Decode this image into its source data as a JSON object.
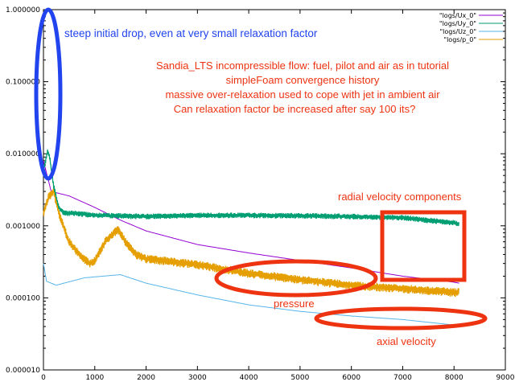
{
  "chart_data": {
    "type": "line",
    "xlabel": "",
    "ylabel": "",
    "xlim": [
      0,
      9000
    ],
    "ylim": [
      1e-05,
      1.0
    ],
    "yscale": "log",
    "grid": false,
    "legend_position": "top-right",
    "x_ticks": [
      0,
      1000,
      2000,
      3000,
      4000,
      5000,
      6000,
      7000,
      8000,
      9000
    ],
    "x_tick_labels": [
      "0",
      "1000",
      "2000",
      "3000",
      "4000",
      "5000",
      "6000",
      "7000",
      "8000",
      "9000"
    ],
    "y_ticks": [
      1e-05,
      0.0001,
      0.001,
      0.01,
      0.1,
      1.0
    ],
    "y_tick_labels": [
      "0.000010",
      "0.000100",
      "0.001000",
      "0.010000",
      "0.100000",
      "1.000000"
    ],
    "series": [
      {
        "name": "\"logs/Ux_0\"",
        "color": "#9400d3",
        "noise": 0,
        "points": [
          [
            0,
            0.008
          ],
          [
            150,
            0.003
          ],
          [
            500,
            0.0026
          ],
          [
            1000,
            0.0018
          ],
          [
            1500,
            0.0012
          ],
          [
            2000,
            0.00085
          ],
          [
            3000,
            0.00055
          ],
          [
            4000,
            0.00042
          ],
          [
            5000,
            0.00033
          ],
          [
            6000,
            0.00026
          ],
          [
            7000,
            0.0002
          ],
          [
            8000,
            0.000165
          ],
          [
            8100,
            0.00016
          ]
        ]
      },
      {
        "name": "\"logs/Uy_0\"",
        "color": "#009e73",
        "noise": 0.09,
        "points": [
          [
            0,
            0.006
          ],
          [
            40,
            0.008
          ],
          [
            80,
            0.011
          ],
          [
            120,
            0.009
          ],
          [
            200,
            0.0035
          ],
          [
            300,
            0.0018
          ],
          [
            400,
            0.0015
          ],
          [
            600,
            0.0015
          ],
          [
            1000,
            0.0014
          ],
          [
            2000,
            0.00135
          ],
          [
            3000,
            0.0014
          ],
          [
            4000,
            0.0014
          ],
          [
            5000,
            0.00138
          ],
          [
            6000,
            0.00135
          ],
          [
            7000,
            0.0013
          ],
          [
            8000,
            0.0011
          ],
          [
            8100,
            0.00105
          ]
        ]
      },
      {
        "name": "\"logs/Uz_0\"",
        "color": "#56b4e9",
        "noise": 0,
        "points": [
          [
            0,
            0.0003
          ],
          [
            60,
            0.00017
          ],
          [
            150,
            0.00016
          ],
          [
            250,
            0.00015
          ],
          [
            400,
            0.00016
          ],
          [
            800,
            0.00019
          ],
          [
            1500,
            0.00021
          ],
          [
            2000,
            0.00016
          ],
          [
            3000,
            0.00011
          ],
          [
            4000,
            8e-05
          ],
          [
            5000,
            6.5e-05
          ],
          [
            6000,
            5.6e-05
          ],
          [
            7000,
            5e-05
          ],
          [
            8000,
            4.2e-05
          ],
          [
            8100,
            4e-05
          ]
        ]
      },
      {
        "name": "\"logs/p_0\"",
        "color": "#e69f00",
        "noise": 0.14,
        "points": [
          [
            0,
            0.0015
          ],
          [
            100,
            0.0025
          ],
          [
            200,
            0.003
          ],
          [
            300,
            0.0015
          ],
          [
            500,
            0.0006
          ],
          [
            700,
            0.0004
          ],
          [
            900,
            0.0003
          ],
          [
            1000,
            0.00033
          ],
          [
            1200,
            0.0006
          ],
          [
            1450,
            0.0009
          ],
          [
            1600,
            0.0006
          ],
          [
            1800,
            0.0004
          ],
          [
            2000,
            0.00035
          ],
          [
            3000,
            0.00029
          ],
          [
            4000,
            0.00022
          ],
          [
            5000,
            0.00018
          ],
          [
            6000,
            0.00015
          ],
          [
            7000,
            0.000135
          ],
          [
            8000,
            0.00012
          ],
          [
            8100,
            0.00012
          ]
        ]
      }
    ],
    "annotations": {
      "steep_drop": "steep initial drop, even at very small relaxation factor",
      "description_lines": [
        "Sandia_LTS incompressible flow: fuel, pilot and air as in tutorial",
        "simpleFoam convergence history",
        "massive over-relaxation used to cope with jet in ambient air",
        "Can relaxation factor be increased after say 100 its?"
      ],
      "radial": "radial velocity components",
      "pressure": "pressure",
      "axial": "axial velocity"
    },
    "annotation_colors": {
      "blue": "#2244ee",
      "red": "#ee3311"
    }
  }
}
